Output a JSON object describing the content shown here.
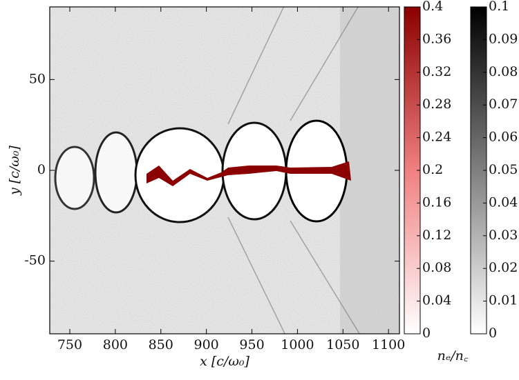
{
  "chart_data": {
    "type": "heatmap",
    "xlabel": "x [c/ω₀]",
    "ylabel": "y [c/ω₀]",
    "xlim": [
      728,
      1112
    ],
    "xticks": [
      750,
      800,
      850,
      900,
      950,
      1000,
      1050,
      1100
    ],
    "ylim": [
      -90,
      90
    ],
    "yticks": [
      -50,
      0,
      50
    ],
    "colorbar_label": "nₑ/n꜀",
    "colorbars": [
      {
        "colors": [
          "#ffffff",
          "#f08080",
          "#8b0000"
        ],
        "lim": [
          0,
          0.4
        ],
        "ticks": [
          0,
          0.04,
          0.08,
          0.12,
          0.16,
          0.2,
          0.24,
          0.28,
          0.32,
          0.36,
          0.4
        ]
      },
      {
        "colors": [
          "#ffffff",
          "#000000"
        ],
        "lim": [
          0,
          0.1
        ],
        "ticks": [
          0,
          0.01,
          0.02,
          0.03,
          0.04,
          0.05,
          0.06,
          0.07,
          0.08,
          0.09,
          0.1
        ]
      }
    ]
  }
}
